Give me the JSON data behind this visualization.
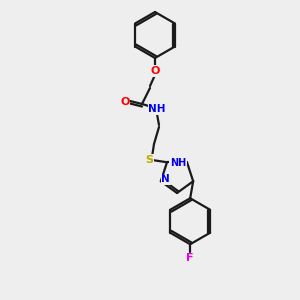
{
  "background_color": "#eeeeee",
  "bond_color": "#1a1a1a",
  "atom_colors": {
    "O": "#ff0000",
    "N": "#0000ee",
    "NH": "#0000ee",
    "S": "#bbaa00",
    "F": "#ee00ee",
    "C": "#1a1a1a"
  },
  "fig_size": [
    3.0,
    3.0
  ],
  "dpi": 100,
  "lw": 1.6
}
